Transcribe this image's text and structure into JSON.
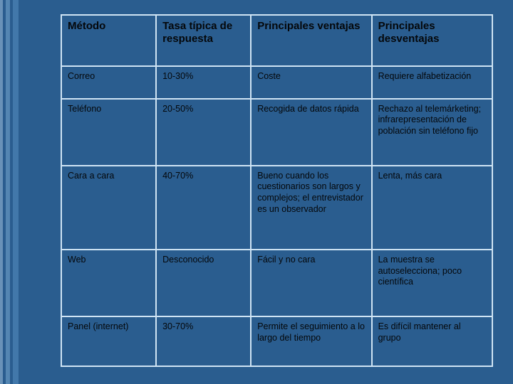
{
  "slide": {
    "background_color": "#2a5d8f",
    "border_color": "#cfe4f4",
    "text_color": "#04070a"
  },
  "table": {
    "type": "table",
    "column_widths_pct": [
      22,
      22,
      28,
      28
    ],
    "header_fontsize": 15,
    "cell_fontsize": 12.5,
    "columns": [
      "Método",
      "Tasa típica de respuesta",
      "Principales ventajas",
      "Principales desventajas"
    ],
    "rows": [
      {
        "metodo": "Correo",
        "tasa": "10-30%",
        "ventajas": "Coste",
        "desventajas": "Requiere alfabetización"
      },
      {
        "metodo": "Teléfono",
        "tasa": "20-50%",
        "ventajas": "Recogida de datos rápida",
        "desventajas": "Rechazo al telemárketing; infrarepresentación de población sin teléfono fijo"
      },
      {
        "metodo": "Cara a cara",
        "tasa": "40-70%",
        "ventajas": "Bueno cuando los cuestionarios son largos y complejos; el entrevistador es un observador",
        "desventajas": "Lenta, más cara"
      },
      {
        "metodo": "Web",
        "tasa": "Desconocido",
        "ventajas": "Fácil y no cara",
        "desventajas": "La muestra se autoselecciona; poco científica"
      },
      {
        "metodo": "Panel (internet)",
        "tasa": "30-70%",
        "ventajas": "Permite el seguimiento a lo largo del tiempo",
        "desventajas": "Es difícil mantener al grupo"
      }
    ]
  }
}
